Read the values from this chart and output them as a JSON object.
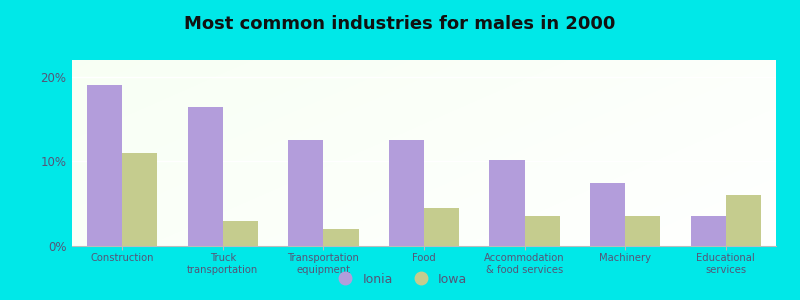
{
  "title": "Most common industries for males in 2000",
  "categories": [
    "Construction",
    "Truck\ntransportation",
    "Transportation\nequipment",
    "Food",
    "Accommodation\n& food services",
    "Machinery",
    "Educational\nservices"
  ],
  "ionia_values": [
    19.0,
    16.5,
    12.5,
    12.5,
    10.2,
    7.5,
    3.5
  ],
  "iowa_values": [
    11.0,
    3.0,
    2.0,
    4.5,
    3.5,
    3.5,
    6.0
  ],
  "ionia_color": "#b39ddb",
  "iowa_color": "#c5cc8e",
  "outer_background": "#00e8e8",
  "title_fontsize": 13,
  "ylim_max": 22,
  "yticks": [
    0,
    10,
    20
  ],
  "ytick_labels": [
    "0%",
    "10%",
    "20%"
  ],
  "legend_labels": [
    "Ionia",
    "Iowa"
  ],
  "bar_width": 0.35,
  "grid_color": "#cccccc",
  "axis_color": "#bbbbbb",
  "tick_label_color": "#555577"
}
